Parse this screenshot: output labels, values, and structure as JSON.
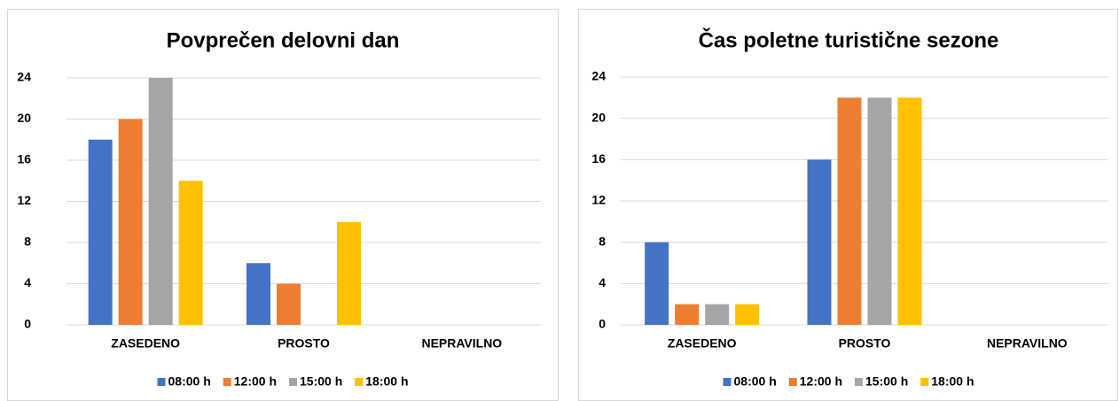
{
  "chart_data": [
    {
      "type": "bar",
      "title": "Povprečen delovni dan",
      "categories": [
        "ZASEDENO",
        "PROSTO",
        "NEPRAVILNO"
      ],
      "series": [
        {
          "name": "08:00 h",
          "color": "#4472c4",
          "values": [
            18,
            6,
            0
          ]
        },
        {
          "name": "12:00 h",
          "color": "#ed7d31",
          "values": [
            20,
            4,
            0
          ]
        },
        {
          "name": "15:00 h",
          "color": "#a5a5a5",
          "values": [
            24,
            0,
            0
          ]
        },
        {
          "name": "18:00 h",
          "color": "#ffc000",
          "values": [
            14,
            10,
            0
          ]
        }
      ],
      "ylim": [
        0,
        24
      ],
      "yticks": [
        0,
        4,
        8,
        12,
        16,
        20,
        24
      ],
      "grid": true,
      "legend": "bottom"
    },
    {
      "type": "bar",
      "title": "Čas poletne turistične sezone",
      "categories": [
        "ZASEDENO",
        "PROSTO",
        "NEPRAVILNO"
      ],
      "series": [
        {
          "name": "08:00 h",
          "color": "#4472c4",
          "values": [
            8,
            16,
            0
          ]
        },
        {
          "name": "12:00 h",
          "color": "#ed7d31",
          "values": [
            2,
            22,
            0
          ]
        },
        {
          "name": "15:00 h",
          "color": "#a5a5a5",
          "values": [
            2,
            22,
            0
          ]
        },
        {
          "name": "18:00 h",
          "color": "#ffc000",
          "values": [
            2,
            22,
            0
          ]
        }
      ],
      "ylim": [
        0,
        24
      ],
      "yticks": [
        0,
        4,
        8,
        12,
        16,
        20,
        24
      ],
      "grid": true,
      "legend": "bottom"
    }
  ]
}
